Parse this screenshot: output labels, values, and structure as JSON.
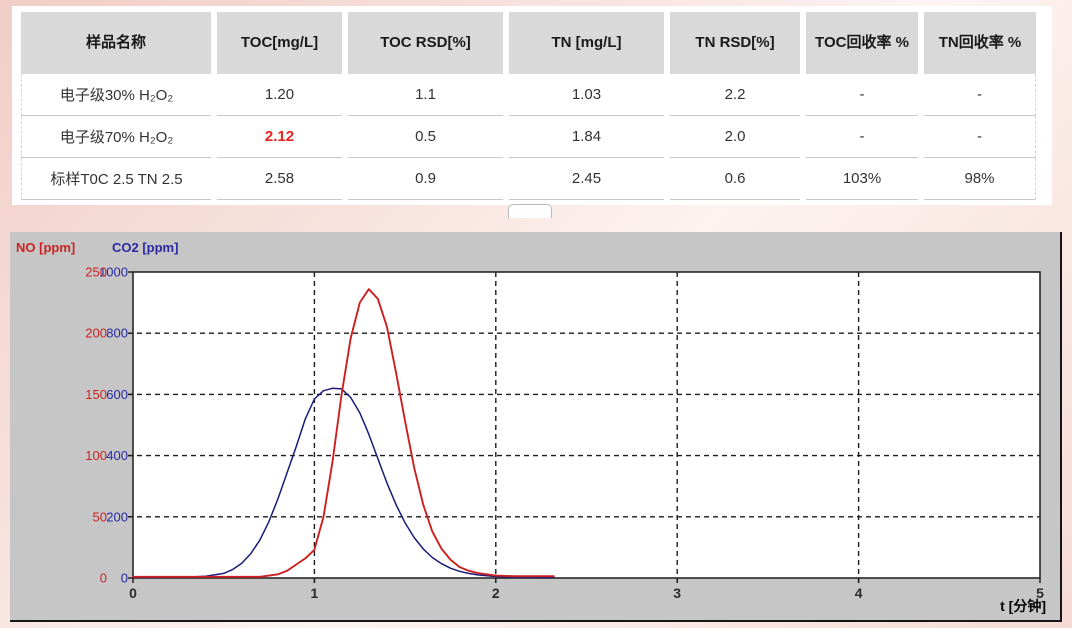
{
  "table": {
    "headers": [
      "样品名称",
      "TOC[mg/L]",
      "TOC RSD[%]",
      "TN [mg/L]",
      "TN RSD[%]",
      "TOC回收率 %",
      "TN回收率 %"
    ],
    "rows": [
      [
        "电子级30% H₂O₂",
        "1.20",
        "1.1",
        "1.03",
        "2.2",
        "-",
        "-"
      ],
      [
        "电子级70% H₂O₂",
        "2.12",
        "0.5",
        "1.84",
        "2.0",
        "-",
        "-"
      ],
      [
        "标样T0C 2.5 TN 2.5",
        "2.58",
        "0.9",
        "2.45",
        "0.6",
        "103%",
        "98%"
      ]
    ],
    "highlight_color": "#e8211d"
  },
  "chart_data": {
    "type": "line",
    "title": "",
    "xlabel": "t [分钟]",
    "x_range": [
      0,
      5
    ],
    "x_ticks": [
      0,
      1,
      2,
      3,
      4,
      5
    ],
    "grid": "dashed",
    "legend_position": "top-left-axis-titles",
    "axes": [
      {
        "name": "NO",
        "label": "NO [ppm]",
        "color": "#cc2222",
        "range": [
          0,
          250
        ],
        "ticks": [
          0,
          50,
          100,
          150,
          200,
          250
        ]
      },
      {
        "name": "CO2",
        "label": "CO2 [ppm]",
        "color": "#2929a3",
        "range": [
          0,
          1000
        ],
        "ticks": [
          0,
          200,
          400,
          600,
          800,
          1000
        ]
      }
    ],
    "series": [
      {
        "name": "CO2",
        "axis": "CO2",
        "color": "#1b1b78",
        "width": 1.5,
        "points": [
          [
            0,
            2
          ],
          [
            0.3,
            3
          ],
          [
            0.4,
            6
          ],
          [
            0.5,
            15
          ],
          [
            0.55,
            28
          ],
          [
            0.6,
            48
          ],
          [
            0.65,
            80
          ],
          [
            0.7,
            125
          ],
          [
            0.75,
            185
          ],
          [
            0.8,
            260
          ],
          [
            0.85,
            345
          ],
          [
            0.9,
            430
          ],
          [
            0.95,
            520
          ],
          [
            1.0,
            585
          ],
          [
            1.05,
            612
          ],
          [
            1.1,
            620
          ],
          [
            1.15,
            618
          ],
          [
            1.2,
            590
          ],
          [
            1.25,
            540
          ],
          [
            1.3,
            470
          ],
          [
            1.35,
            390
          ],
          [
            1.4,
            310
          ],
          [
            1.45,
            240
          ],
          [
            1.5,
            180
          ],
          [
            1.55,
            132
          ],
          [
            1.6,
            95
          ],
          [
            1.65,
            67
          ],
          [
            1.7,
            47
          ],
          [
            1.75,
            32
          ],
          [
            1.8,
            22
          ],
          [
            1.85,
            15
          ],
          [
            1.9,
            10
          ],
          [
            2.0,
            5
          ],
          [
            2.1,
            3
          ],
          [
            2.2,
            2
          ],
          [
            2.32,
            2
          ]
        ]
      },
      {
        "name": "NO",
        "axis": "NO",
        "color": "#cc2020",
        "width": 1.9,
        "points": [
          [
            0,
            1
          ],
          [
            0.7,
            1
          ],
          [
            0.8,
            3
          ],
          [
            0.85,
            6
          ],
          [
            0.9,
            11
          ],
          [
            0.95,
            16
          ],
          [
            1.0,
            23
          ],
          [
            1.05,
            50
          ],
          [
            1.1,
            95
          ],
          [
            1.15,
            150
          ],
          [
            1.2,
            196
          ],
          [
            1.25,
            225
          ],
          [
            1.3,
            236
          ],
          [
            1.35,
            228
          ],
          [
            1.4,
            205
          ],
          [
            1.45,
            168
          ],
          [
            1.5,
            128
          ],
          [
            1.55,
            90
          ],
          [
            1.6,
            60
          ],
          [
            1.65,
            38
          ],
          [
            1.7,
            24
          ],
          [
            1.75,
            15
          ],
          [
            1.8,
            9
          ],
          [
            1.85,
            6
          ],
          [
            1.9,
            4
          ],
          [
            1.95,
            3
          ],
          [
            2.0,
            2
          ],
          [
            2.1,
            1.5
          ],
          [
            2.32,
            1.5
          ]
        ]
      }
    ]
  }
}
